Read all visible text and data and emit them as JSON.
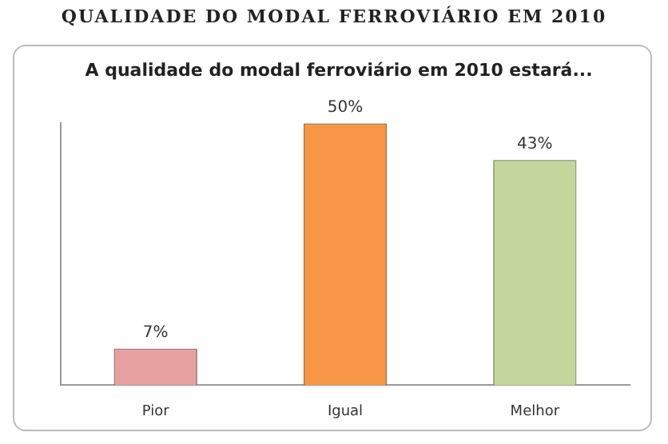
{
  "chart_data": {
    "type": "bar",
    "title": "QUALIDADE DO MODAL FERROVIÁRIO EM 2010",
    "subtitle": "A qualidade do modal ferroviário em 2010 estará...",
    "categories": [
      "Pior",
      "Igual",
      "Melhor"
    ],
    "values": [
      7,
      50,
      43
    ],
    "value_labels": [
      "7%",
      "50%",
      "43%"
    ],
    "colors": [
      "#e6a0a0",
      "#f79646",
      "#c3d69b"
    ],
    "tick_labels": "x",
    "grid": false,
    "legend": false
  }
}
